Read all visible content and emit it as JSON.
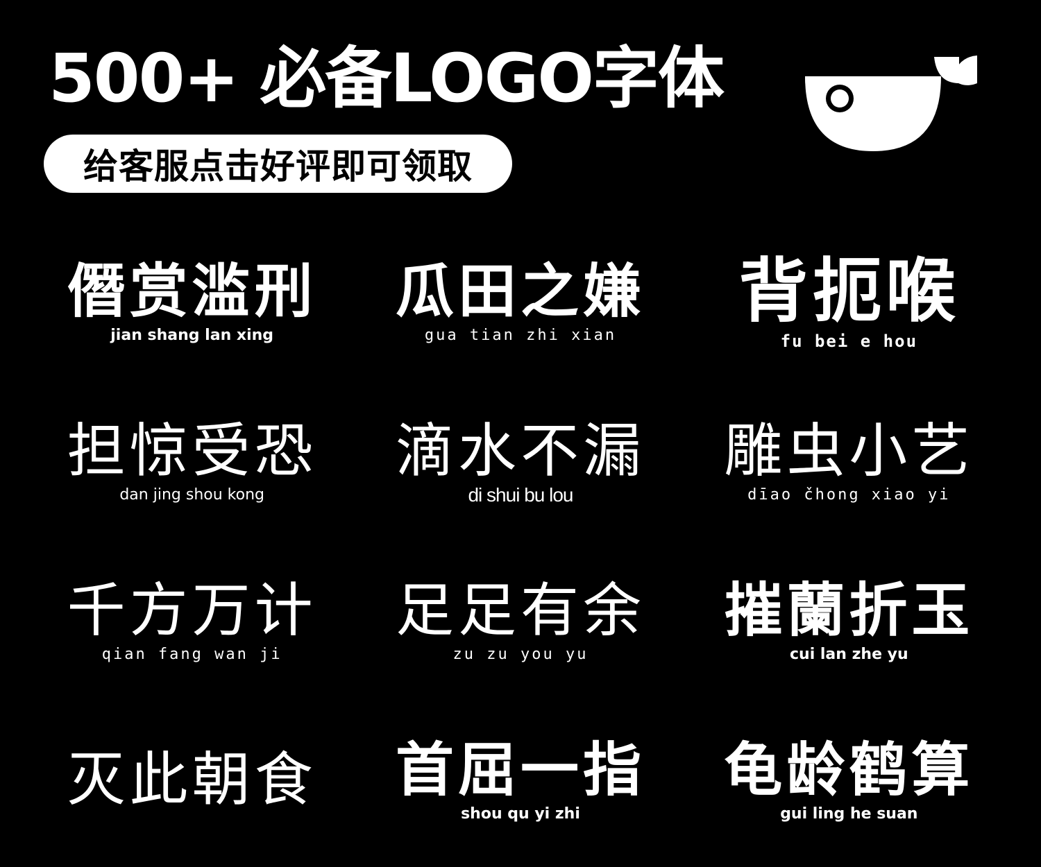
{
  "header": {
    "title": "500+ 必备LOGO字体",
    "promo": "给客服点击好评即可领取"
  },
  "logo": {
    "icon": "whale-icon"
  },
  "fonts": [
    {
      "idiom": "僭赏滥刑",
      "pinyin": "jian shang lan xing"
    },
    {
      "idiom": "瓜田之嫌",
      "pinyin": "gua tian zhi xian"
    },
    {
      "idiom": "背扼喉",
      "pinyin": "fu bei e hou"
    },
    {
      "idiom": "担惊受恐",
      "pinyin": "dan jing shou kong"
    },
    {
      "idiom": "滴水不漏",
      "pinyin": "di shui bu lou"
    },
    {
      "idiom": "雕虫小艺",
      "pinyin": "dīao čhong xiao yi"
    },
    {
      "idiom": "千方万计",
      "pinyin": "qian fang wan ji"
    },
    {
      "idiom": "足足有余",
      "pinyin": "zu zu you yu"
    },
    {
      "idiom": "摧蘭折玉",
      "pinyin": "cui lan zhe yu"
    },
    {
      "idiom": "灭此朝食",
      "pinyin": ""
    },
    {
      "idiom": "首屈一指",
      "pinyin": "shou qu yi zhi"
    },
    {
      "idiom": "龟龄鹤算",
      "pinyin": "gui ling he suan"
    }
  ],
  "colors": {
    "background": "#000000",
    "foreground": "#ffffff"
  }
}
